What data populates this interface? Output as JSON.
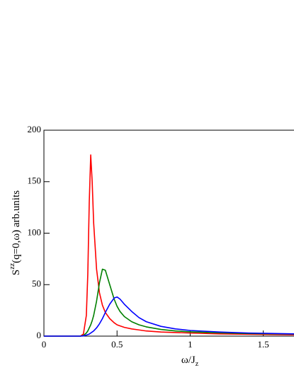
{
  "chart_data": {
    "type": "line",
    "ylabel": {
      "base": "S",
      "sup": "zz",
      "rest": "(q=0,ω) arb.units"
    },
    "xlabel": {
      "base": "ω/J",
      "sub": "z"
    },
    "x": [
      0,
      0.25,
      0.27,
      0.29,
      0.3,
      0.31,
      0.32,
      0.33,
      0.34,
      0.36,
      0.38,
      0.4,
      0.42,
      0.45,
      0.48,
      0.5,
      0.52,
      0.55,
      0.6,
      0.65,
      0.7,
      0.8,
      0.9,
      1.0,
      1.2,
      1.4,
      1.71
    ],
    "series": [
      {
        "color": "#ff0000",
        "values": [
          0,
          0,
          2,
          20,
          60,
          130,
          176,
          150,
          110,
          65,
          42,
          30,
          23,
          17,
          13,
          11,
          10,
          8.5,
          7,
          6,
          5,
          4,
          3.5,
          3,
          2.2,
          1.8,
          1.3
        ]
      },
      {
        "color": "#008000",
        "values": [
          0,
          0,
          0.5,
          3,
          5,
          8,
          11,
          15,
          20,
          34,
          52,
          65,
          64,
          50,
          36,
          29,
          24,
          19,
          14,
          11,
          9,
          6.5,
          5,
          4.2,
          3.2,
          2.5,
          2
        ]
      },
      {
        "color": "#0000ff",
        "values": [
          0,
          0,
          0.2,
          1,
          1.5,
          2,
          3,
          4,
          5,
          8,
          12,
          17,
          23,
          31,
          37,
          38,
          36,
          31,
          24,
          18,
          14,
          9.5,
          7,
          5.5,
          4,
          3,
          2.2
        ]
      }
    ],
    "xlim": [
      0,
      1.71
    ],
    "ylim": [
      0,
      200
    ],
    "xticks": [
      0,
      0.5,
      1,
      1.5
    ],
    "yticks": [
      0,
      50,
      100,
      150,
      200
    ]
  }
}
